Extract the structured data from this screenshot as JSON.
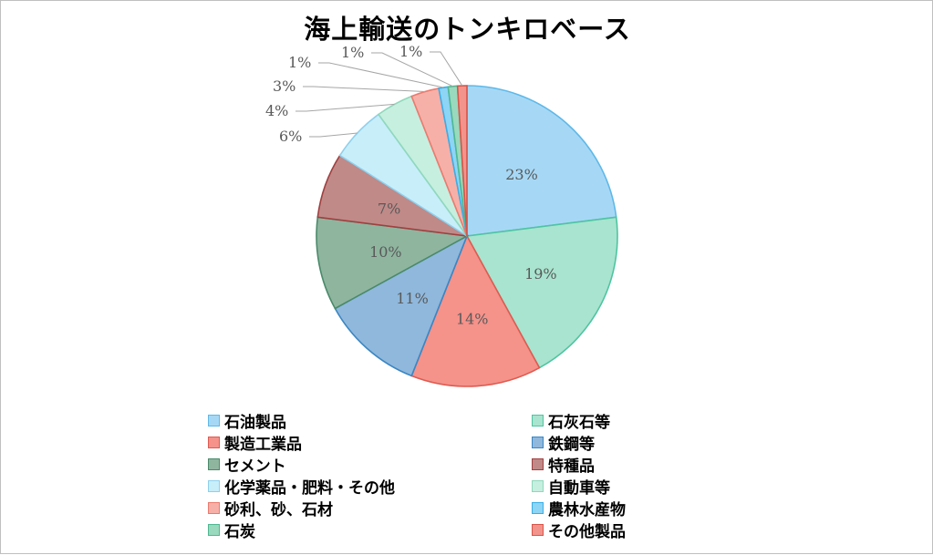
{
  "chart_data": {
    "type": "pie",
    "title": "海上輸送のトンキロベース",
    "legend_position": "bottom",
    "slices": [
      {
        "name": "石油製品",
        "value": 23,
        "label": "23%",
        "fill": "#a6d8f5",
        "stroke": "#5fb8e8"
      },
      {
        "name": "石灰石等",
        "value": 19,
        "label": "19%",
        "fill": "#a8e4cf",
        "stroke": "#4fc4a0"
      },
      {
        "name": "製造工業品",
        "value": 14,
        "label": "14%",
        "fill": "#f5928a",
        "stroke": "#e05a50"
      },
      {
        "name": "鉄鋼等",
        "value": 11,
        "label": "11%",
        "fill": "#8fb8dc",
        "stroke": "#3a86c4"
      },
      {
        "name": "セメント",
        "value": 10,
        "label": "10%",
        "fill": "#8fb59f",
        "stroke": "#4a8a6a"
      },
      {
        "name": "特種品",
        "value": 7,
        "label": "7%",
        "fill": "#c08a88",
        "stroke": "#a04040"
      },
      {
        "name": "化学薬品・肥料・その他",
        "value": 6,
        "label": "6%",
        "fill": "#c8eefa",
        "stroke": "#8fd0ec"
      },
      {
        "name": "自動車等",
        "value": 4,
        "label": "4%",
        "fill": "#c6efe0",
        "stroke": "#8fd8bc"
      },
      {
        "name": "砂利、砂、石材",
        "value": 3,
        "label": "3%",
        "fill": "#f7b0a8",
        "stroke": "#ec7a6e"
      },
      {
        "name": "農林水産物",
        "value": 1,
        "label": "1%",
        "fill": "#8ed4f5",
        "stroke": "#3aaee6"
      },
      {
        "name": "石炭",
        "value": 1,
        "label": "1%",
        "fill": "#9ad9bd",
        "stroke": "#4fb890"
      },
      {
        "name": "その他製品",
        "value": 1,
        "label": "1%",
        "fill": "#f2948c",
        "stroke": "#d85448"
      }
    ]
  }
}
